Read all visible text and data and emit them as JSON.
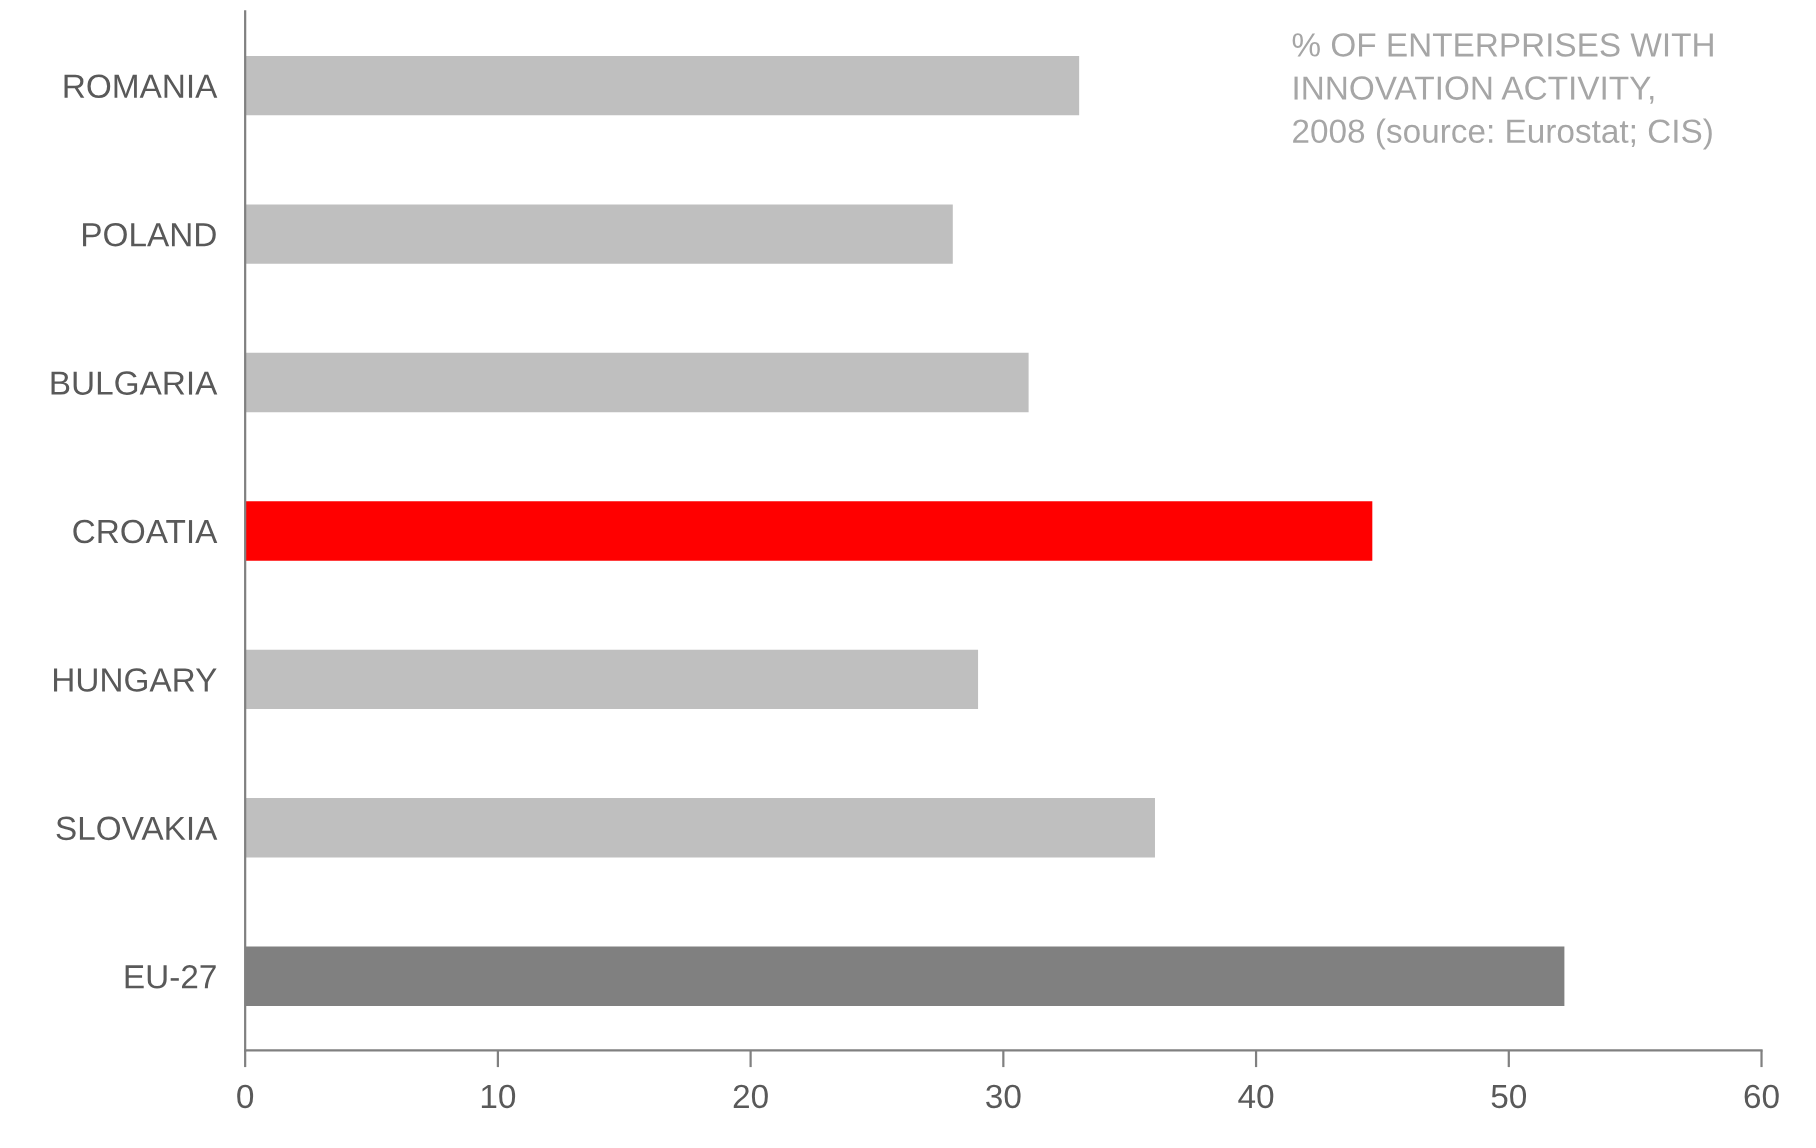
{
  "chart_data": {
    "type": "bar",
    "orientation": "horizontal",
    "categories": [
      "ROMANIA",
      "POLAND",
      "BULGARIA",
      "CROATIA",
      "HUNGARY",
      "SLOVAKIA",
      "EU-27"
    ],
    "values": [
      33,
      28,
      31,
      44.6,
      29,
      36,
      52.2
    ],
    "colors": [
      "#bfbfbf",
      "#bfbfbf",
      "#bfbfbf",
      "#ff0000",
      "#bfbfbf",
      "#bfbfbf",
      "#808080"
    ],
    "xlim": [
      0,
      60
    ],
    "xticks": [
      0,
      10,
      20,
      30,
      40,
      50,
      60
    ],
    "grid": false,
    "legend": false,
    "annotations": [
      "% OF ENTERPRISES WITH\nINNOVATION ACTIVITY,\n2008 (source: Eurostat; CIS)"
    ]
  }
}
